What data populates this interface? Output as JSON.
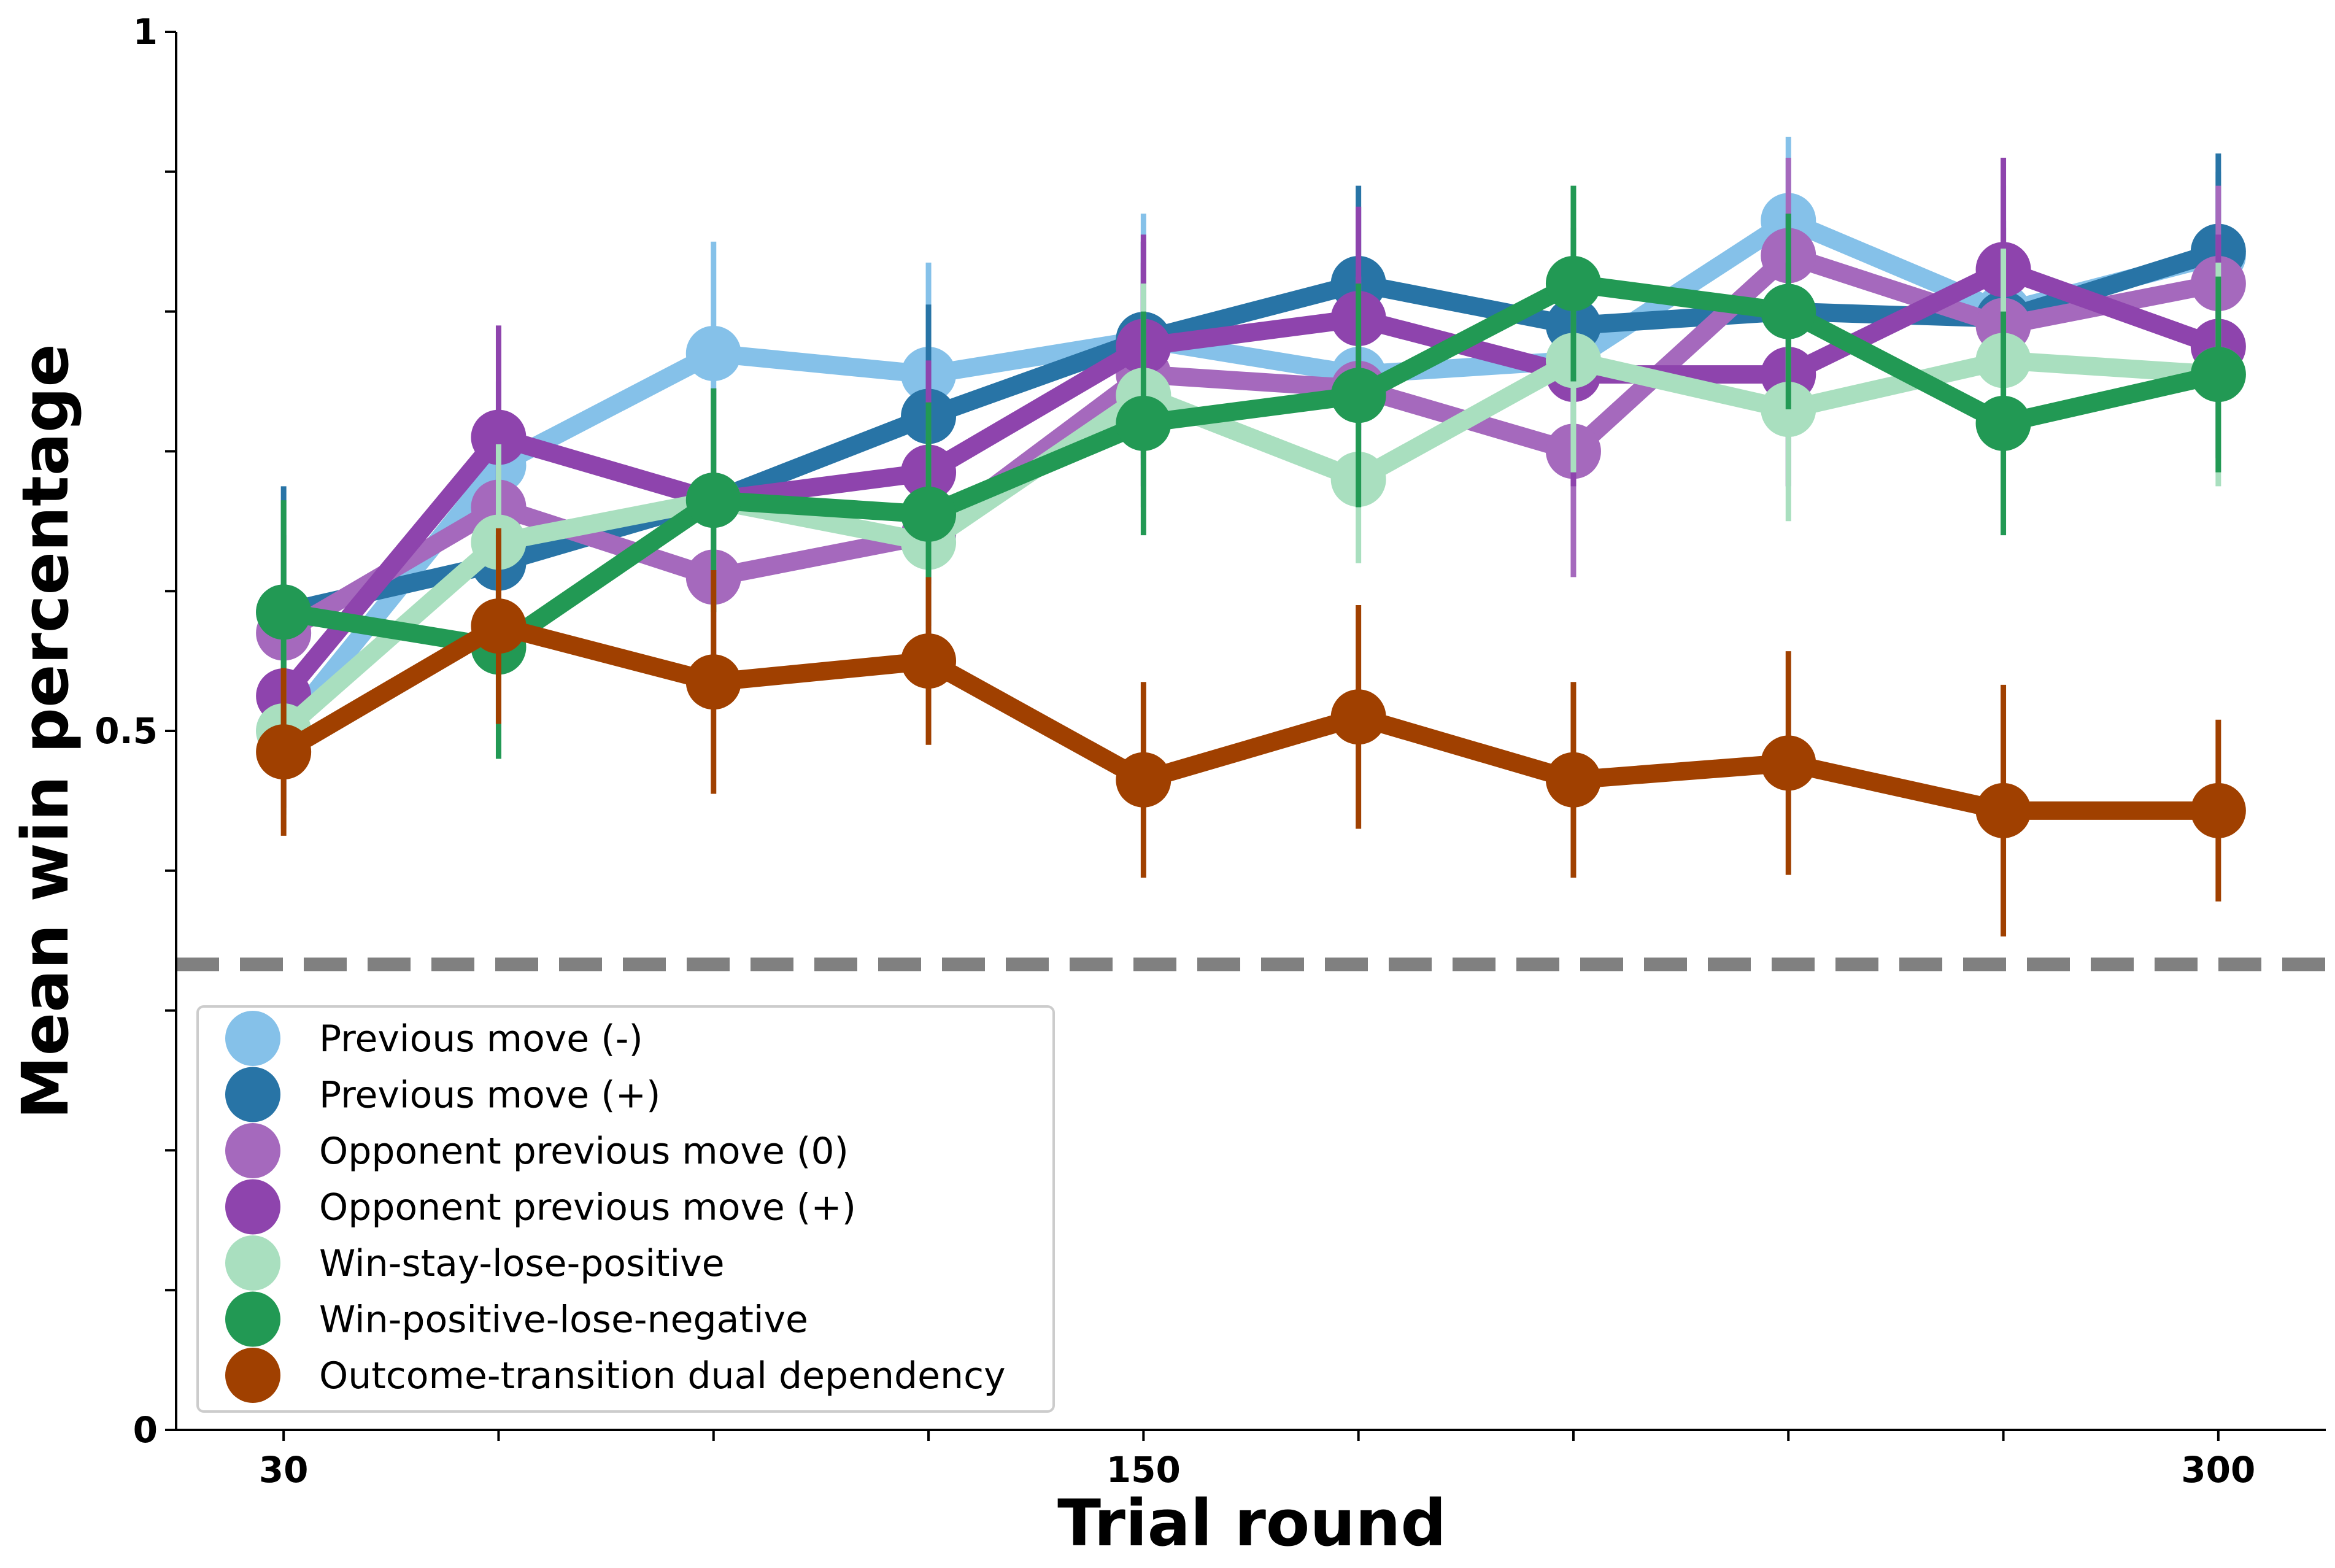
{
  "chart_data": {
    "type": "line",
    "xlabel": "Trial round",
    "ylabel": "Mean win percentage",
    "x": [
      30,
      60,
      90,
      120,
      150,
      180,
      210,
      240,
      270,
      300
    ],
    "xlim": [
      15,
      315
    ],
    "ylim": [
      0,
      1
    ],
    "xticks": [
      30,
      60,
      90,
      120,
      150,
      180,
      210,
      240,
      270,
      300
    ],
    "xtick_labels": [
      "30",
      "",
      "",
      "",
      "150",
      "",
      "",
      "",
      "",
      "300"
    ],
    "yticks": [
      0,
      0.1,
      0.2,
      0.3,
      0.4,
      0.5,
      0.6,
      0.7,
      0.8,
      0.9,
      1.0
    ],
    "ytick_labels": [
      "0",
      "",
      "",
      "",
      "",
      "0.5",
      "",
      "",
      "",
      "",
      "1"
    ],
    "reference_line": {
      "y": 0.333,
      "style": "dashed",
      "color": "#808080"
    },
    "grid": false,
    "legend_position": "bottom-left",
    "series": [
      {
        "name": "Previous move (-)",
        "color": "#85C1E9",
        "values": [
          0.5,
          0.69,
          0.77,
          0.755,
          0.78,
          0.755,
          0.765,
          0.865,
          0.8,
          0.84
        ],
        "errors": [
          0.06,
          0.06,
          0.08,
          0.08,
          0.09,
          0.07,
          0.07,
          0.06,
          0.09,
          0.06
        ]
      },
      {
        "name": "Previous move (+)",
        "color": "#2874A6",
        "values": [
          0.585,
          0.62,
          0.665,
          0.725,
          0.78,
          0.82,
          0.79,
          0.8,
          0.795,
          0.843
        ],
        "errors": [
          0.09,
          0.07,
          0.08,
          0.08,
          0.07,
          0.07,
          0.07,
          0.07,
          0.07,
          0.07
        ]
      },
      {
        "name": "Opponent previous move (0)",
        "color": "#A569BD",
        "values": [
          0.57,
          0.66,
          0.61,
          0.64,
          0.755,
          0.745,
          0.7,
          0.84,
          0.79,
          0.82
        ],
        "errors": [
          0.07,
          0.07,
          0.07,
          0.07,
          0.08,
          0.08,
          0.09,
          0.07,
          0.07,
          0.07
        ]
      },
      {
        "name": "Opponent previous move (+)",
        "color": "#8E44AD",
        "values": [
          0.525,
          0.71,
          0.665,
          0.685,
          0.775,
          0.795,
          0.755,
          0.755,
          0.83,
          0.775
        ],
        "errors": [
          0.08,
          0.08,
          0.08,
          0.08,
          0.08,
          0.08,
          0.08,
          0.08,
          0.08,
          0.08
        ]
      },
      {
        "name": "Win-stay-lose-positive",
        "color": "#A9DFBF",
        "values": [
          0.5,
          0.635,
          0.665,
          0.635,
          0.74,
          0.68,
          0.765,
          0.73,
          0.765,
          0.755
        ],
        "errors": [
          0.07,
          0.07,
          0.08,
          0.08,
          0.08,
          0.06,
          0.08,
          0.08,
          0.08,
          0.08
        ]
      },
      {
        "name": "Win-positive-lose-negative",
        "color": "#229954",
        "values": [
          0.585,
          0.56,
          0.665,
          0.655,
          0.72,
          0.74,
          0.82,
          0.8,
          0.72,
          0.755
        ],
        "errors": [
          0.08,
          0.08,
          0.08,
          0.08,
          0.08,
          0.08,
          0.07,
          0.07,
          0.08,
          0.07
        ]
      },
      {
        "name": "Outcome-transition dual dependency",
        "color": "#A04000",
        "values": [
          0.485,
          0.575,
          0.535,
          0.55,
          0.465,
          0.51,
          0.465,
          0.477,
          0.443,
          0.443
        ],
        "errors": [
          0.06,
          0.07,
          0.08,
          0.06,
          0.07,
          0.08,
          0.07,
          0.08,
          0.09,
          0.065
        ]
      }
    ]
  }
}
